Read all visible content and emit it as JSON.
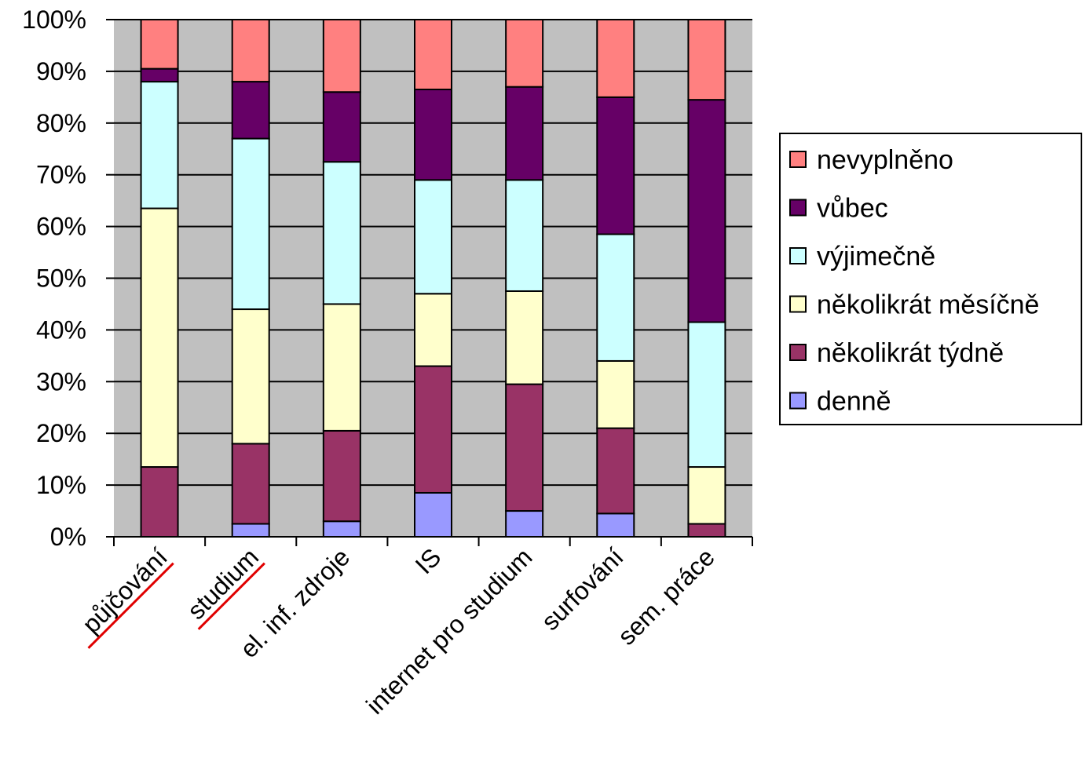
{
  "chart_data": {
    "type": "bar",
    "stacked": true,
    "percent_stacked": true,
    "categories": [
      "půjčování",
      "studium",
      "el. inf. zdroje",
      "IS",
      "internet pro studium",
      "surfování",
      "sem. práce"
    ],
    "underlined_categories": [
      "půjčování",
      "studium"
    ],
    "series": [
      {
        "name": "denně",
        "color": "#9999ff",
        "values": [
          0,
          2.5,
          3,
          8.5,
          5,
          4.5,
          0
        ]
      },
      {
        "name": "několikrát týdně",
        "color": "#993366",
        "values": [
          13.5,
          15.5,
          17.5,
          24.5,
          24.5,
          16.5,
          2.5
        ]
      },
      {
        "name": "několikrát měsíčně",
        "color": "#ffffcc",
        "values": [
          50,
          26,
          24.5,
          14,
          18,
          13,
          11
        ]
      },
      {
        "name": "výjimečně",
        "color": "#ccffff",
        "values": [
          24.5,
          33,
          27.5,
          22,
          21.5,
          24.5,
          28
        ]
      },
      {
        "name": "vůbec",
        "color": "#660066",
        "values": [
          2.5,
          11,
          13.5,
          17.5,
          18,
          26.5,
          43
        ]
      },
      {
        "name": "nevyplněno",
        "color": "#ff8080",
        "values": [
          9.5,
          12,
          14,
          13.5,
          13,
          15,
          15.5
        ]
      }
    ],
    "legend_order": [
      "nevyplněno",
      "vůbec",
      "výjimečně",
      "několikrát měsíčně",
      "několikrát týdně",
      "denně"
    ],
    "y_ticks": [
      "0%",
      "10%",
      "20%",
      "30%",
      "40%",
      "50%",
      "60%",
      "70%",
      "80%",
      "90%",
      "100%"
    ],
    "ylim": [
      0,
      100
    ],
    "grid": true,
    "legend_position": "right",
    "plot_background": "#c0c0c0",
    "underline_color": "#e00000"
  }
}
